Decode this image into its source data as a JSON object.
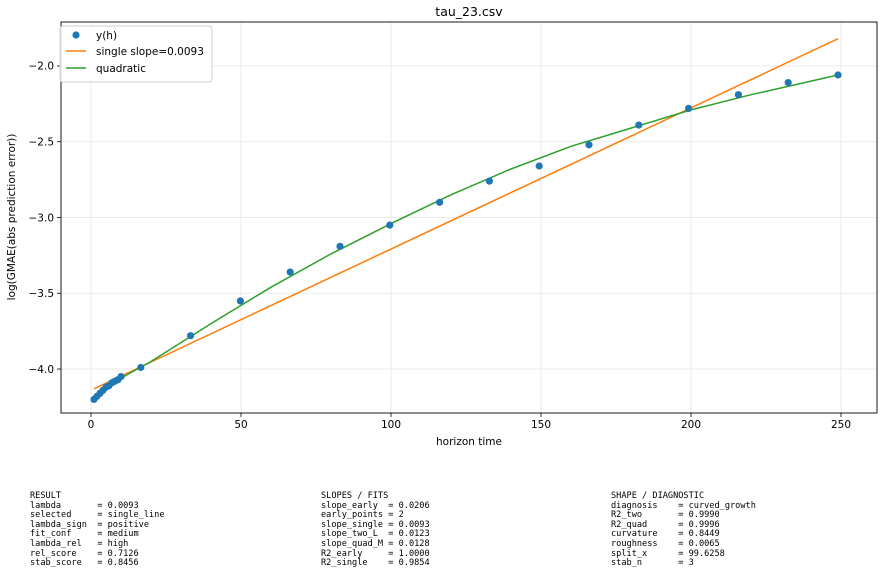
{
  "chart_data": {
    "type": "scatter",
    "title": "tau_23.csv",
    "xlabel": "horizon time",
    "ylabel": "log(GMAE(abs prediction error))",
    "xlim": [
      -10,
      262
    ],
    "ylim": [
      -4.29,
      -1.71
    ],
    "xticks": [
      0,
      50,
      100,
      150,
      200,
      250
    ],
    "yticks": [
      -4.0,
      -3.5,
      -3.0,
      -2.5,
      -2.0
    ],
    "xtick_labels": [
      "0",
      "50",
      "100",
      "150",
      "200",
      "250"
    ],
    "ytick_labels": [
      "−4.0",
      "−3.5",
      "−3.0",
      "−2.5",
      "−2.0"
    ],
    "grid": true,
    "legend_position": "upper-left",
    "series": [
      {
        "name": "y(h)",
        "kind": "scatter",
        "color": "#1f77b4",
        "x": [
          1,
          2,
          3,
          4,
          5,
          6,
          7,
          8,
          9,
          10,
          16.6,
          33.2,
          49.8,
          66.4,
          83.0,
          99.6,
          116.2,
          132.8,
          149.4,
          166.0,
          182.6,
          199.2,
          215.8,
          232.4,
          249.0
        ],
        "y": [
          -4.2,
          -4.18,
          -4.16,
          -4.14,
          -4.12,
          -4.11,
          -4.09,
          -4.08,
          -4.07,
          -4.05,
          -3.99,
          -3.78,
          -3.55,
          -3.36,
          -3.19,
          -3.05,
          -2.9,
          -2.76,
          -2.66,
          -2.52,
          -2.39,
          -2.28,
          -2.19,
          -2.11,
          -2.06
        ]
      },
      {
        "name": "single slope=0.0093",
        "kind": "line",
        "color": "#ff7f0e",
        "x": [
          1,
          249
        ],
        "y": [
          -4.13,
          -1.82
        ]
      },
      {
        "name": "quadratic",
        "kind": "line",
        "color": "#2ca02c",
        "x": [
          1,
          10,
          20,
          40,
          60,
          80,
          100,
          120,
          140,
          160,
          180,
          200,
          220,
          240,
          249
        ],
        "y": [
          -4.19,
          -4.06,
          -3.95,
          -3.7,
          -3.46,
          -3.24,
          -3.04,
          -2.85,
          -2.68,
          -2.53,
          -2.41,
          -2.29,
          -2.19,
          -2.1,
          -2.06
        ]
      }
    ]
  },
  "panels": {
    "result": [
      "RESULT",
      "lambda       = 0.0093",
      "selected     = single_line",
      "lambda_sign  = positive",
      "fit_conf     = medium",
      "lambda_rel   = high",
      "rel_score    = 0.7126",
      "stab_score   = 0.8456"
    ],
    "slopes": [
      "SLOPES / FITS",
      "slope_early  = 0.0206",
      "early_points = 2",
      "slope_single = 0.0093",
      "slope_two_L  = 0.0123",
      "slope_quad_M = 0.0128",
      "R2_early     = 1.0000",
      "R2_single    = 0.9854"
    ],
    "shape": [
      "SHAPE / DIAGNOSTIC",
      "diagnosis    = curved_growth",
      "R2_two       = 0.9990",
      "R2_quad      = 0.9996",
      "curvature    = 0.8449",
      "roughness    = 0.0065",
      "split_x      = 99.6258",
      "stab_n       = 3"
    ]
  }
}
